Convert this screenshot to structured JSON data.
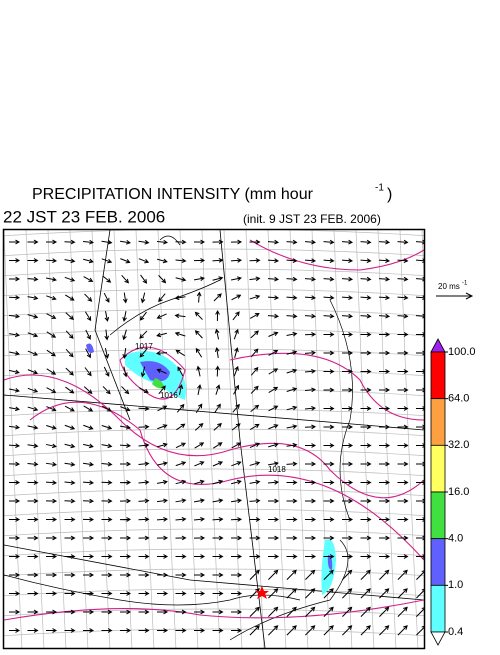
{
  "header": {
    "title": "PRECIPITATION INTENSITY (mm hour",
    "title_exponent": "-1",
    "title_close": ")",
    "valid_time": "22 JST 23 FEB. 2006",
    "init_time": "(init. 9 JST 23 FEB. 2006)"
  },
  "vector_legend": {
    "label": "20 ms",
    "label_exponent": "-1"
  },
  "isobar_labels": [
    "1017",
    "1016",
    "1018"
  ],
  "colorbar": {
    "levels": [
      {
        "value": 100,
        "label": "100.0"
      },
      {
        "value": 64,
        "label": "64.0"
      },
      {
        "value": 32,
        "label": "32.0"
      },
      {
        "value": 16,
        "label": "16.0"
      },
      {
        "value": 4,
        "label": "4.0"
      },
      {
        "value": 1,
        "label": "1.0"
      },
      {
        "value": 0.4,
        "label": "0.4"
      }
    ],
    "colors": [
      "#a020f0",
      "#ff0000",
      "#ffa040",
      "#ffff60",
      "#40e040",
      "#6060ff",
      "#60ffff",
      "#ffffff"
    ]
  }
}
